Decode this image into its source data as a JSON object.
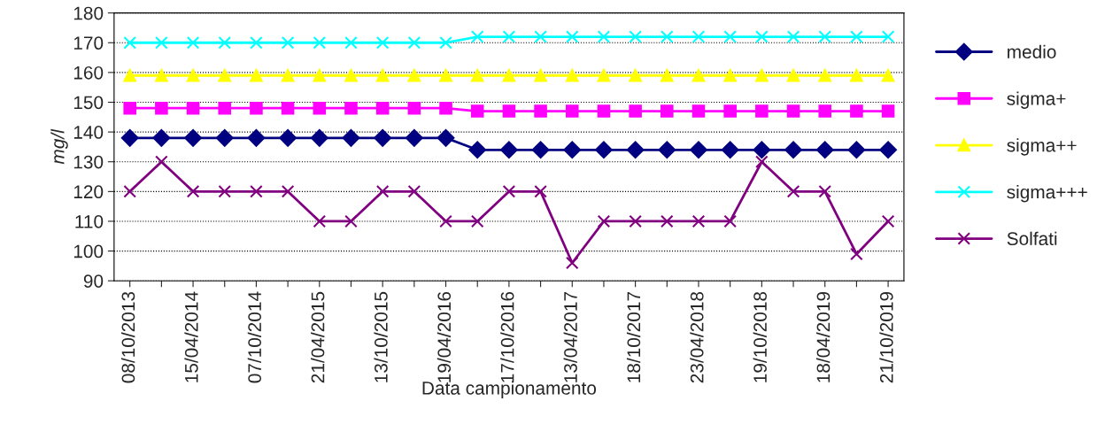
{
  "chart_data": {
    "type": "line",
    "xlabel": "Data campionamento",
    "ylabel": "mg/l",
    "categories": [
      "08/10/2013",
      null,
      "15/04/2014",
      null,
      "07/10/2014",
      null,
      "21/04/2015",
      null,
      "13/10/2015",
      null,
      "19/04/2016",
      null,
      "17/10/2016",
      null,
      "13/04/2017",
      null,
      "18/10/2017",
      null,
      "23/04/2018",
      null,
      "19/10/2018",
      null,
      "18/04/2019",
      null,
      "21/10/2019"
    ],
    "series": [
      {
        "name": "medio",
        "color": "#000080",
        "marker": "diamond",
        "values": [
          138,
          138,
          138,
          138,
          138,
          138,
          138,
          138,
          138,
          138,
          138,
          134,
          134,
          134,
          134,
          134,
          134,
          134,
          134,
          134,
          134,
          134,
          134,
          134,
          134
        ]
      },
      {
        "name": "sigma+",
        "color": "#ff00ff",
        "marker": "square",
        "values": [
          148,
          148,
          148,
          148,
          148,
          148,
          148,
          148,
          148,
          148,
          148,
          147,
          147,
          147,
          147,
          147,
          147,
          147,
          147,
          147,
          147,
          147,
          147,
          147,
          147
        ]
      },
      {
        "name": "sigma++",
        "color": "#ffff00",
        "marker": "triangle",
        "values": [
          159,
          159,
          159,
          159,
          159,
          159,
          159,
          159,
          159,
          159,
          159,
          159,
          159,
          159,
          159,
          159,
          159,
          159,
          159,
          159,
          159,
          159,
          159,
          159,
          159
        ]
      },
      {
        "name": "sigma+++",
        "color": "#00ffff",
        "marker": "cross",
        "values": [
          170,
          170,
          170,
          170,
          170,
          170,
          170,
          170,
          170,
          170,
          170,
          172,
          172,
          172,
          172,
          172,
          172,
          172,
          172,
          172,
          172,
          172,
          172,
          172,
          172
        ]
      },
      {
        "name": "Solfati",
        "color": "#800080",
        "marker": "cross",
        "values": [
          120,
          130,
          120,
          120,
          120,
          120,
          110,
          110,
          120,
          120,
          110,
          110,
          120,
          120,
          96,
          110,
          110,
          110,
          110,
          110,
          130,
          120,
          120,
          99,
          110
        ]
      }
    ],
    "ylim": [
      90,
      180
    ],
    "yticks": [
      90,
      100,
      110,
      120,
      130,
      140,
      150,
      160,
      170,
      180
    ],
    "grid": "y",
    "legend": "right",
    "line_style": "solid"
  }
}
